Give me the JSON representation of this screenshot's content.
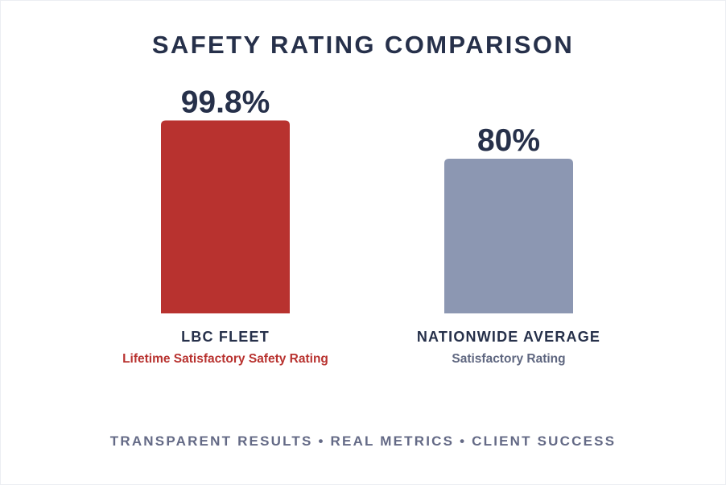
{
  "chart_data": {
    "type": "bar",
    "title": "SAFETY RATING COMPARISON",
    "categories": [
      "LBC FLEET",
      "NATIONWIDE AVERAGE"
    ],
    "subtitles": [
      "Lifetime Satisfactory Safety Rating",
      "Satisfactory Rating"
    ],
    "values": [
      99.8,
      80
    ],
    "value_labels": [
      "99.8%",
      "80%"
    ],
    "colors": [
      "#b8322f",
      "#8c97b2"
    ],
    "subtitle_colors": [
      "#b8322f",
      "#5f6780"
    ],
    "ylim": [
      0,
      100
    ],
    "grid": false,
    "legend": "none"
  },
  "footer": "TRANSPARENT RESULTS • REAL METRICS • CLIENT SUCCESS"
}
